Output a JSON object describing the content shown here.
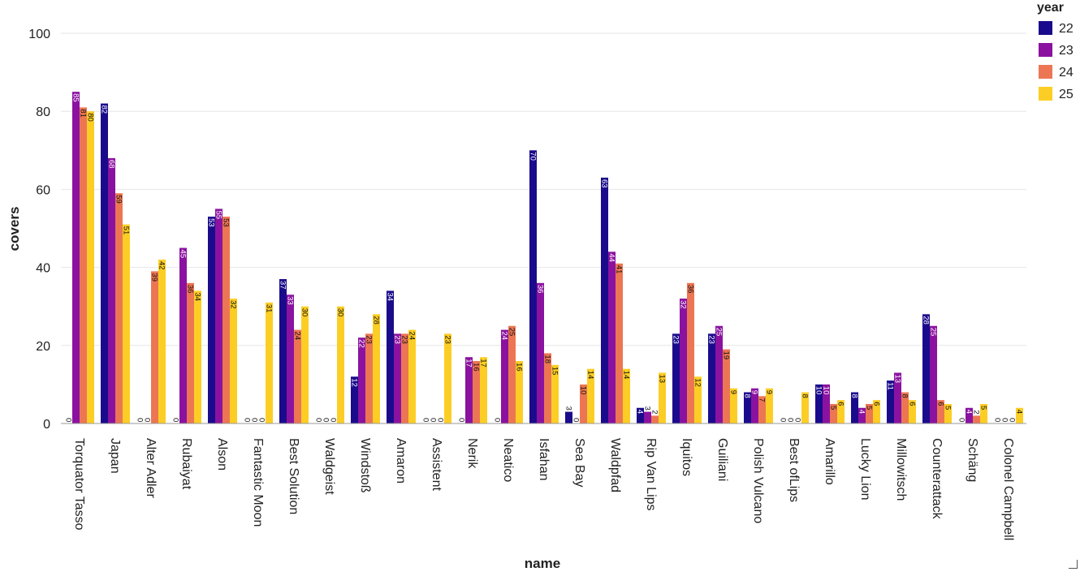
{
  "chart_data": {
    "type": "bar",
    "title": "",
    "xlabel": "name",
    "ylabel": "covers",
    "ylim": [
      0,
      100
    ],
    "yticks": [
      0,
      20,
      40,
      60,
      80,
      100
    ],
    "grid": true,
    "legend": {
      "title": "year",
      "placement": "top-right"
    },
    "categories": [
      "Torquator Tasso",
      "Japan",
      "Alter Adler",
      "Rubaiyat",
      "Alson",
      "Fantastic Moon",
      "Best Solution",
      "Waldgeist",
      "Windstoß",
      "Amaron",
      "Assistent",
      "Nerik",
      "Neatico",
      "Isfahan",
      "Sea Bay",
      "Waldpfad",
      "Rip Van Lips",
      "Iquitos",
      "Guiliani",
      "Polish Vulcano",
      "Best ofLips",
      "Amarillo",
      "Lucky Lion",
      "Millowitsch",
      "Counterattack",
      "Schäng",
      "Colonel Campbell"
    ],
    "series": [
      {
        "name": "22",
        "color": "#1a0b8c",
        "values": [
          0,
          82,
          0,
          0,
          53,
          0,
          37,
          0,
          12,
          34,
          0,
          0,
          0,
          70,
          3,
          63,
          4,
          23,
          23,
          8,
          0,
          10,
          8,
          11,
          28,
          0,
          0
        ]
      },
      {
        "name": "23",
        "color": "#8b12a0",
        "values": [
          85,
          68,
          0,
          45,
          55,
          0,
          33,
          0,
          22,
          23,
          0,
          17,
          24,
          36,
          0,
          44,
          3,
          32,
          25,
          9,
          0,
          10,
          4,
          13,
          25,
          4,
          0
        ]
      },
      {
        "name": "24",
        "color": "#ec7653",
        "values": [
          81,
          59,
          39,
          36,
          53,
          0,
          24,
          0,
          23,
          23,
          0,
          16,
          25,
          18,
          10,
          41,
          2,
          36,
          19,
          7,
          0,
          5,
          5,
          8,
          6,
          2,
          0
        ]
      },
      {
        "name": "25",
        "color": "#fcce25",
        "values": [
          80,
          51,
          42,
          34,
          32,
          31,
          30,
          30,
          28,
          24,
          23,
          17,
          16,
          15,
          14,
          14,
          13,
          12,
          9,
          9,
          8,
          6,
          6,
          6,
          5,
          5,
          4
        ]
      }
    ]
  }
}
